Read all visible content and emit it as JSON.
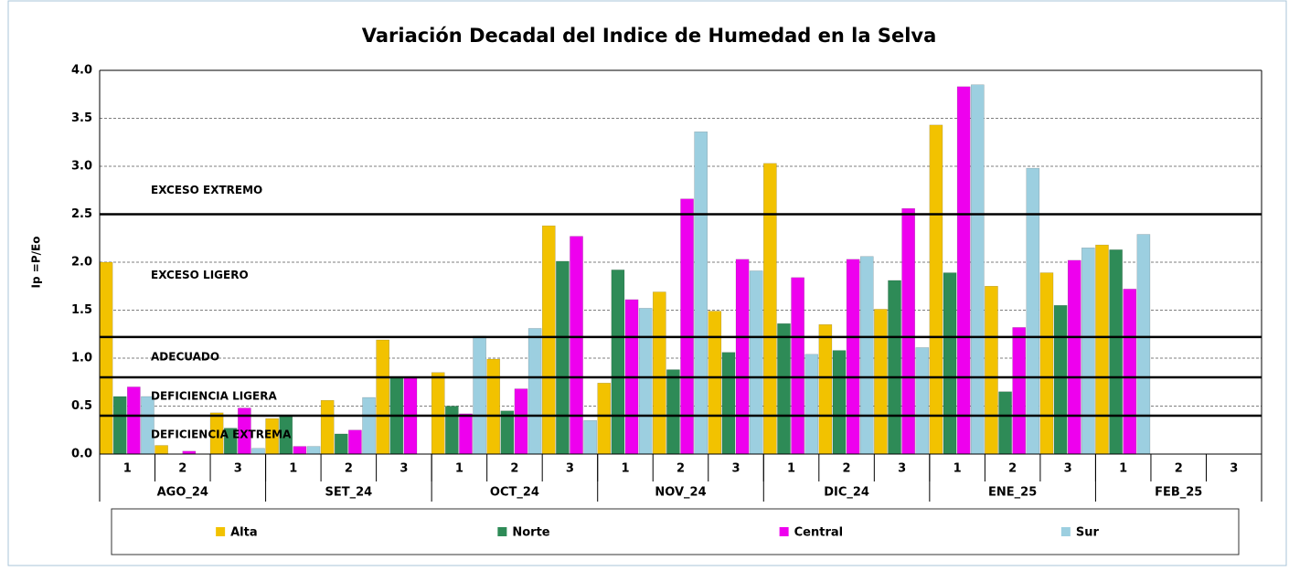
{
  "chart_data": {
    "type": "bar",
    "title": "Variación Decadal del Indice de Humedad en la Selva",
    "y_label": "Ip =P/Eo",
    "categories": [
      "1",
      "2",
      "3",
      "1",
      "2",
      "3",
      "1",
      "2",
      "3",
      "1",
      "2",
      "3",
      "1",
      "2",
      "3",
      "1",
      "2",
      "3",
      "1",
      "2",
      "3"
    ],
    "months": [
      "AGO_24",
      "SET_24",
      "OCT_24",
      "NOV_24",
      "DIC_24",
      "ENE_25",
      "FEB_25"
    ],
    "series": [
      {
        "name": "Alta",
        "color": "#f2c200",
        "values": [
          2.0,
          0.09,
          0.43,
          0.37,
          0.56,
          1.19,
          0.85,
          0.99,
          2.38,
          0.74,
          1.69,
          1.49,
          3.03,
          1.35,
          1.51,
          3.43,
          1.75,
          1.89,
          2.18,
          null,
          null
        ]
      },
      {
        "name": "Norte",
        "color": "#2e8b57",
        "values": [
          0.6,
          0,
          0.27,
          0.4,
          0.21,
          0.8,
          0.5,
          0.45,
          2.01,
          1.92,
          0.88,
          1.06,
          1.36,
          1.08,
          1.81,
          1.89,
          0.65,
          1.55,
          2.13,
          null,
          null
        ]
      },
      {
        "name": "Central",
        "color": "#ee00ee",
        "values": [
          0.7,
          0.03,
          0.48,
          0.08,
          0.25,
          0.8,
          0.42,
          0.68,
          2.27,
          1.61,
          2.66,
          2.03,
          1.84,
          2.03,
          2.56,
          3.83,
          1.32,
          2.02,
          1.72,
          null,
          null
        ]
      },
      {
        "name": "Sur",
        "color": "#9ccfe0",
        "values": [
          0.6,
          0,
          0.06,
          0.08,
          0.59,
          0,
          1.23,
          1.31,
          0.35,
          1.52,
          3.36,
          1.91,
          1.04,
          2.06,
          1.11,
          3.85,
          2.98,
          2.15,
          2.29,
          null,
          null
        ]
      }
    ],
    "zones": [
      {
        "label": "EXCESO EXTREMO",
        "min": 2.5
      },
      {
        "label": "EXCESO LIGERO",
        "min": 1.22
      },
      {
        "label": "ADECUADO",
        "min": 0.8
      },
      {
        "label": "DEFICIENCIA LIGERA",
        "min": 0.4
      },
      {
        "label": "DEFICIENCIA EXTREMA",
        "min": 0
      }
    ],
    "ylim": [
      0,
      4
    ],
    "yticks": [
      {
        "value": 0,
        "label": "0.0"
      },
      0.5,
      {
        "value": 1,
        "label": "1.0"
      },
      1.5,
      {
        "value": 2,
        "label": "2.0"
      },
      2.5,
      {
        "value": 3,
        "label": "3.0"
      },
      3.5,
      {
        "value": 4,
        "label": "4.0"
      }
    ],
    "grid": true
  }
}
